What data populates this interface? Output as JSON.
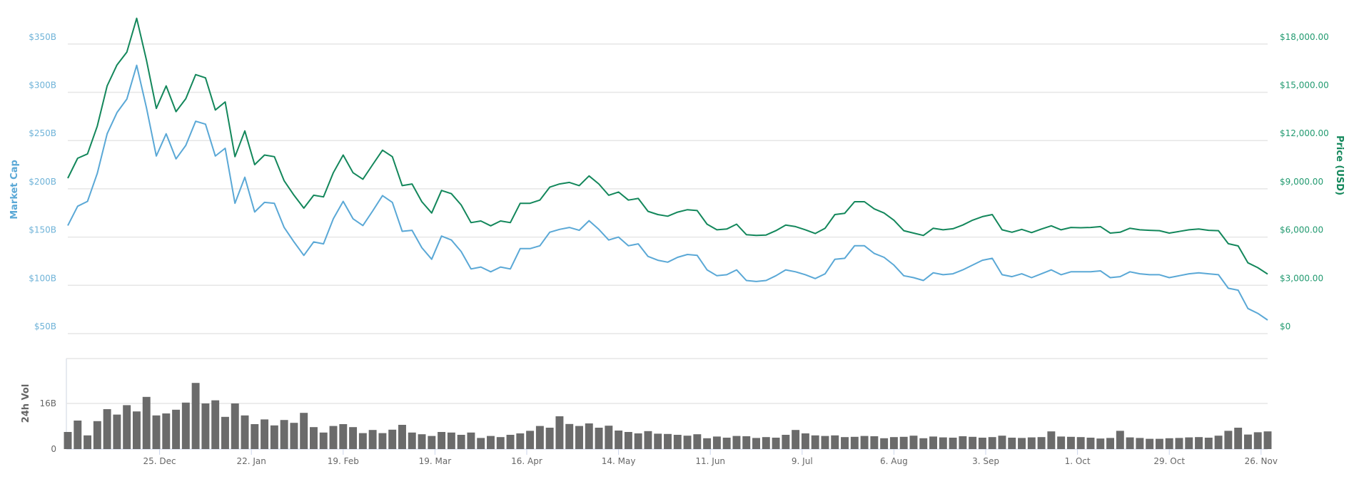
{
  "chart_data": {
    "type": "line",
    "axes": {
      "left_title": "Market Cap",
      "right_title": "Price (USD)",
      "volume_title": "24h Vol",
      "left_ticks": [
        {
          "value": 50,
          "label": "$50B"
        },
        {
          "value": 100,
          "label": "$100B"
        },
        {
          "value": 150,
          "label": "$150B"
        },
        {
          "value": 200,
          "label": "$200B"
        },
        {
          "value": 250,
          "label": "$250B"
        },
        {
          "value": 300,
          "label": "$300B"
        },
        {
          "value": 350,
          "label": "$350B"
        }
      ],
      "right_ticks": [
        {
          "value": 0,
          "label": "$0"
        },
        {
          "value": 3000,
          "label": "$3,000.00"
        },
        {
          "value": 6000,
          "label": "$6,000.00"
        },
        {
          "value": 9000,
          "label": "$9,000.00"
        },
        {
          "value": 12000,
          "label": "$12,000.00"
        },
        {
          "value": 15000,
          "label": "$15,000.00"
        },
        {
          "value": 18000,
          "label": "$18,000.00"
        }
      ],
      "volume_ticks": [
        {
          "value": 0,
          "label": "0"
        },
        {
          "value": 16,
          "label": "16B"
        }
      ],
      "x_ticks": [
        {
          "date": "2017-12-25",
          "label": "25. Dec"
        },
        {
          "date": "2018-01-22",
          "label": "22. Jan"
        },
        {
          "date": "2018-02-19",
          "label": "19. Feb"
        },
        {
          "date": "2018-03-19",
          "label": "19. Mar"
        },
        {
          "date": "2018-04-16",
          "label": "16. Apr"
        },
        {
          "date": "2018-05-14",
          "label": "14. May"
        },
        {
          "date": "2018-06-11",
          "label": "11. Jun"
        },
        {
          "date": "2018-07-09",
          "label": "9. Jul"
        },
        {
          "date": "2018-08-06",
          "label": "6. Aug"
        },
        {
          "date": "2018-09-03",
          "label": "3. Sep"
        },
        {
          "date": "2018-10-01",
          "label": "1. Oct"
        },
        {
          "date": "2018-10-29",
          "label": "29. Oct"
        },
        {
          "date": "2018-11-26",
          "label": "26. Nov"
        }
      ],
      "xlim": [
        "2017-11-27",
        "2018-11-28"
      ],
      "market_cap_ylim_billions": [
        50,
        350
      ],
      "price_ylim_usd": [
        0,
        18000
      ],
      "volume_ylim_billions": [
        0,
        32
      ],
      "grid": true
    },
    "colors": {
      "market_cap": "#5aa8d6",
      "price": "#13875b",
      "volume": "#6b6b6b"
    },
    "x": [
      "2017-11-27",
      "2017-11-30",
      "2017-12-03",
      "2017-12-06",
      "2017-12-09",
      "2017-12-12",
      "2017-12-15",
      "2017-12-18",
      "2017-12-21",
      "2017-12-24",
      "2017-12-27",
      "2017-12-30",
      "2018-01-02",
      "2018-01-05",
      "2018-01-08",
      "2018-01-11",
      "2018-01-14",
      "2018-01-17",
      "2018-01-20",
      "2018-01-23",
      "2018-01-26",
      "2018-01-29",
      "2018-02-01",
      "2018-02-04",
      "2018-02-07",
      "2018-02-10",
      "2018-02-13",
      "2018-02-16",
      "2018-02-19",
      "2018-02-22",
      "2018-02-25",
      "2018-02-28",
      "2018-03-03",
      "2018-03-06",
      "2018-03-09",
      "2018-03-12",
      "2018-03-15",
      "2018-03-18",
      "2018-03-21",
      "2018-03-24",
      "2018-03-27",
      "2018-03-30",
      "2018-04-02",
      "2018-04-05",
      "2018-04-08",
      "2018-04-11",
      "2018-04-14",
      "2018-04-17",
      "2018-04-20",
      "2018-04-23",
      "2018-04-26",
      "2018-04-29",
      "2018-05-02",
      "2018-05-05",
      "2018-05-08",
      "2018-05-11",
      "2018-05-14",
      "2018-05-17",
      "2018-05-20",
      "2018-05-23",
      "2018-05-26",
      "2018-05-29",
      "2018-06-01",
      "2018-06-04",
      "2018-06-07",
      "2018-06-10",
      "2018-06-13",
      "2018-06-16",
      "2018-06-19",
      "2018-06-22",
      "2018-06-25",
      "2018-06-28",
      "2018-07-01",
      "2018-07-04",
      "2018-07-07",
      "2018-07-10",
      "2018-07-13",
      "2018-07-16",
      "2018-07-19",
      "2018-07-22",
      "2018-07-25",
      "2018-07-28",
      "2018-07-31",
      "2018-08-03",
      "2018-08-06",
      "2018-08-09",
      "2018-08-12",
      "2018-08-15",
      "2018-08-18",
      "2018-08-21",
      "2018-08-24",
      "2018-08-27",
      "2018-08-30",
      "2018-09-02",
      "2018-09-05",
      "2018-09-08",
      "2018-09-11",
      "2018-09-14",
      "2018-09-17",
      "2018-09-20",
      "2018-09-23",
      "2018-09-26",
      "2018-09-29",
      "2018-10-02",
      "2018-10-05",
      "2018-10-08",
      "2018-10-11",
      "2018-10-14",
      "2018-10-17",
      "2018-10-20",
      "2018-10-23",
      "2018-10-26",
      "2018-10-29",
      "2018-11-01",
      "2018-11-04",
      "2018-11-07",
      "2018-11-10",
      "2018-11-13",
      "2018-11-16",
      "2018-11-19",
      "2018-11-22",
      "2018-11-25",
      "2018-11-28"
    ],
    "series": [
      {
        "name": "Market Cap",
        "axis": "left",
        "unit": "billion USD",
        "values": [
          162,
          182,
          187,
          216,
          257,
          279,
          293,
          328,
          284,
          234,
          257,
          231,
          245,
          270,
          267,
          234,
          242,
          185,
          212,
          176,
          186,
          185,
          160,
          145,
          131,
          145,
          143,
          169,
          187,
          169,
          162,
          177,
          193,
          186,
          156,
          157,
          139,
          127,
          151,
          147,
          135,
          117,
          119,
          114,
          119,
          117,
          138,
          138,
          141,
          155,
          158,
          160,
          157,
          167,
          158,
          147,
          150,
          141,
          143,
          130,
          126,
          124,
          129,
          132,
          131,
          116,
          110,
          111,
          116,
          105,
          104,
          105,
          110,
          116,
          114,
          111,
          107,
          112,
          127,
          128,
          141,
          141,
          133,
          129,
          121,
          110,
          108,
          105,
          113,
          111,
          112,
          116,
          121,
          126,
          128,
          111,
          109,
          112,
          108,
          112,
          116,
          111,
          114,
          114,
          114,
          115,
          108,
          109,
          114,
          112,
          111,
          111,
          108,
          110,
          112,
          113,
          112,
          111,
          97,
          95,
          76,
          71,
          64
        ]
      },
      {
        "name": "Price (USD)",
        "axis": "right",
        "unit": "USD",
        "values": [
          9660,
          10900,
          11170,
          12900,
          15400,
          16700,
          17500,
          19600,
          17000,
          14000,
          15400,
          13800,
          14600,
          16100,
          15900,
          13900,
          14400,
          11000,
          12600,
          10500,
          11100,
          11000,
          9500,
          8600,
          7800,
          8600,
          8500,
          10000,
          11100,
          10000,
          9600,
          10500,
          11400,
          11000,
          9200,
          9300,
          8200,
          7500,
          8900,
          8700,
          8000,
          6900,
          7000,
          6700,
          7000,
          6900,
          8100,
          8100,
          8300,
          9100,
          9300,
          9400,
          9200,
          9800,
          9300,
          8600,
          8800,
          8300,
          8400,
          7600,
          7400,
          7300,
          7550,
          7700,
          7650,
          6800,
          6450,
          6500,
          6800,
          6150,
          6100,
          6130,
          6400,
          6750,
          6650,
          6450,
          6220,
          6550,
          7400,
          7480,
          8200,
          8200,
          7750,
          7500,
          7050,
          6400,
          6250,
          6100,
          6550,
          6450,
          6520,
          6750,
          7050,
          7270,
          7400,
          6450,
          6300,
          6480,
          6280,
          6500,
          6700,
          6450,
          6600,
          6580,
          6600,
          6650,
          6250,
          6300,
          6550,
          6450,
          6420,
          6400,
          6250,
          6350,
          6450,
          6500,
          6420,
          6400,
          5590,
          5450,
          4400,
          4100,
          3700
        ]
      },
      {
        "name": "24h Vol",
        "axis": "volume",
        "unit": "billion USD",
        "type": "bar",
        "values": [
          6.0,
          10,
          4.8,
          9.8,
          14,
          12.1,
          15.4,
          13.2,
          18.3,
          11.8,
          12.5,
          13.8,
          16.3,
          23.2,
          16,
          17.1,
          11.3,
          16,
          11.8,
          8.75,
          10.4,
          8.3,
          10.2,
          9.2,
          12.7,
          7.7,
          5.8,
          8.1,
          8.75,
          7.7,
          5.6,
          6.7,
          5.6,
          6.8,
          8.5,
          5.8,
          5.2,
          4.6,
          6,
          5.8,
          5,
          5.8,
          3.9,
          4.6,
          4.2,
          5.0,
          5.5,
          6.4,
          8.1,
          7.5,
          11.5,
          8.8,
          8.1,
          9.0,
          7.5,
          8.2,
          6.5,
          6.0,
          5.5,
          6.3,
          5.4,
          5.3,
          5.0,
          4.7,
          5.2,
          3.8,
          4.4,
          4.0,
          4.6,
          4.5,
          3.9,
          4.2,
          4.0,
          5.0,
          6.7,
          5.5,
          4.8,
          4.6,
          4.8,
          4.2,
          4.3,
          4.6,
          4.5,
          3.8,
          4.2,
          4.3,
          4.7,
          3.8,
          4.4,
          4.1,
          4.0,
          4.5,
          4.3,
          4.0,
          4.2,
          4.7,
          4.0,
          3.9,
          4.1,
          4.2,
          6.2,
          4.4,
          4.3,
          4.2,
          4.0,
          3.7,
          3.9,
          6.4,
          4.1,
          3.9,
          3.6,
          3.6,
          3.8,
          3.9,
          4.1,
          4.2,
          4.0,
          4.7,
          6.4,
          7.5,
          5.1,
          5.9,
          6.2
        ]
      }
    ]
  }
}
